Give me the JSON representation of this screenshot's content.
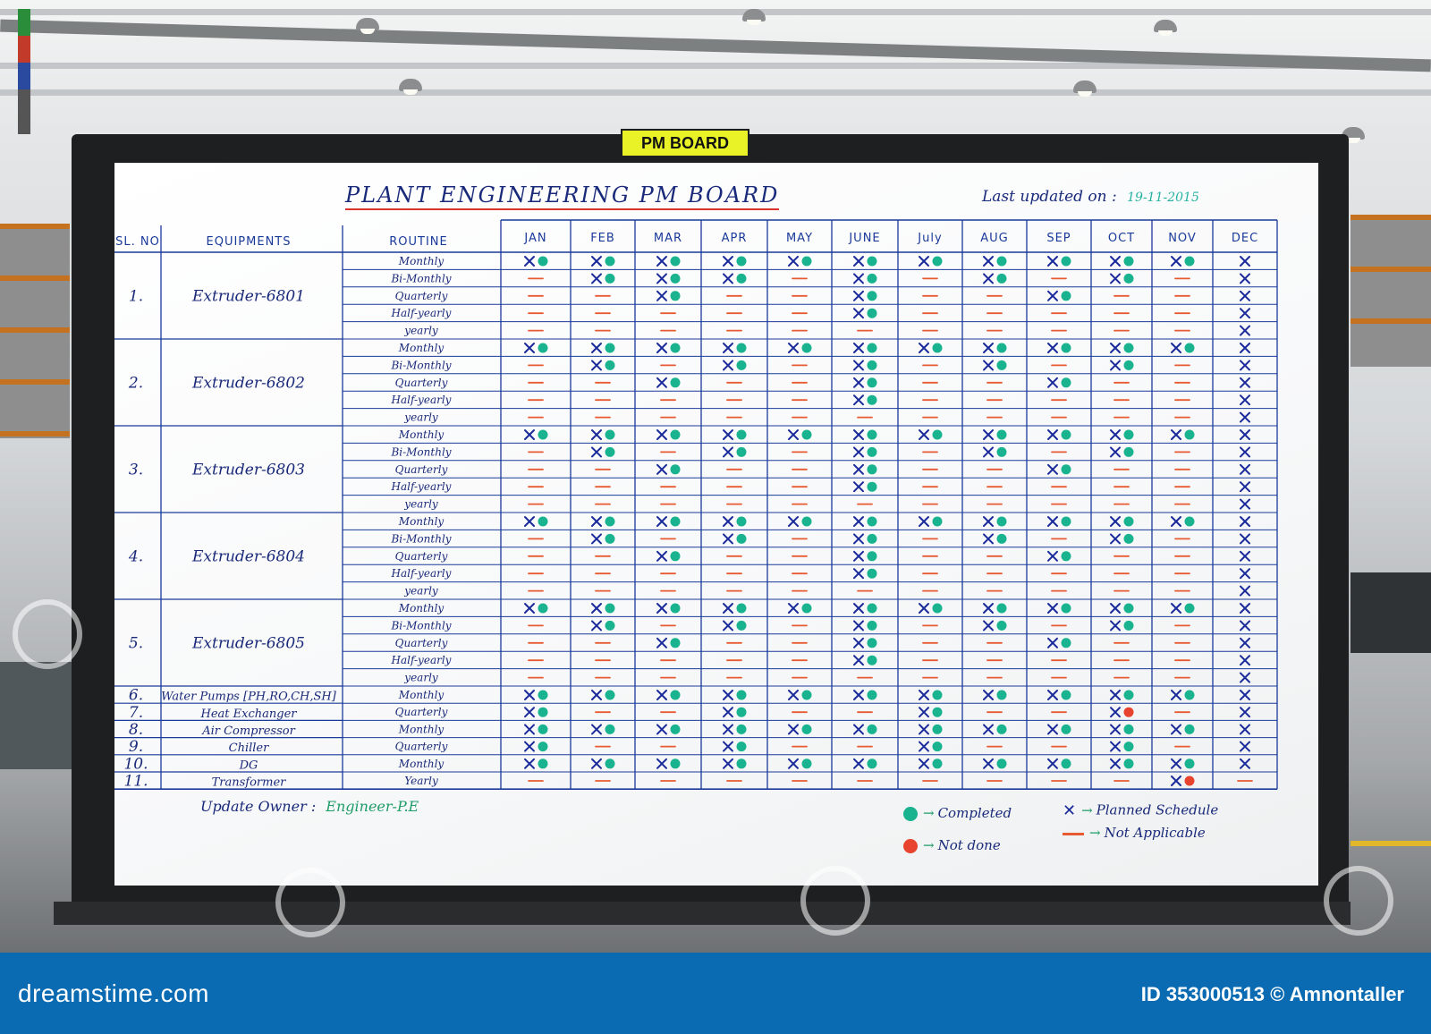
{
  "tag_label": "PM BOARD",
  "board": {
    "title": "PLANT ENGINEERING PM BOARD",
    "last_updated_label": "Last updated on :",
    "last_updated_date": "19-11-2015",
    "headers": {
      "sl": "SL. NO",
      "equipment": "EQUIPMENTS",
      "routine": "ROUTINE"
    },
    "months": [
      "JAN",
      "FEB",
      "MAR",
      "APR",
      "MAY",
      "JUNE",
      "July",
      "AUG",
      "SEP",
      "OCT",
      "NOV",
      "DEC"
    ],
    "equipment": [
      {
        "sl": "1.",
        "name": "Extruder-6801",
        "routines": [
          "Monthly",
          "Bi-Monthly",
          "Quarterly",
          "Half-yearly",
          "yearly"
        ]
      },
      {
        "sl": "2.",
        "name": "Extruder-6802",
        "routines": [
          "Monthly",
          "Bi-Monthly",
          "Quarterly",
          "Half-yearly",
          "yearly"
        ]
      },
      {
        "sl": "3.",
        "name": "Extruder-6803",
        "routines": [
          "Monthly",
          "Bi-Monthly",
          "Quarterly",
          "Half-yearly",
          "yearly"
        ]
      },
      {
        "sl": "4.",
        "name": "Extruder-6804",
        "routines": [
          "Monthly",
          "Bi-Monthly",
          "Quarterly",
          "Half-yearly",
          "yearly"
        ]
      },
      {
        "sl": "5.",
        "name": "Extruder-6805",
        "routines": [
          "Monthly",
          "Bi-Monthly",
          "Quarterly",
          "Half-yearly",
          "yearly"
        ]
      },
      {
        "sl": "6.",
        "name": "Water Pumps [PH,RO,CH,SH]",
        "routines": [
          "Monthly"
        ]
      },
      {
        "sl": "7.",
        "name": "Heat Exchanger",
        "routines": [
          "Quarterly"
        ]
      },
      {
        "sl": "8.",
        "name": "Air Compressor",
        "routines": [
          "Monthly"
        ]
      },
      {
        "sl": "9.",
        "name": "Chiller",
        "routines": [
          "Quarterly"
        ]
      },
      {
        "sl": "10.",
        "name": "DG",
        "routines": [
          "Monthly"
        ]
      },
      {
        "sl": "11.",
        "name": "Transformer",
        "routines": [
          "Yearly"
        ]
      }
    ],
    "status_grid": [
      "C C C C C C C C C C C P",
      "- C C C - C - C - C - P",
      "- - C - - C - - C - - P",
      "- - - - - C - - - - - P",
      "- - - - - - - - - - - P",
      "C C C C C C C C C C C P",
      "- C - C - C - C - C - P",
      "- - C - - C - - C - - P",
      "- - - - - C - - - - - P",
      "- - - - - - - - - - - P",
      "C C C C C C C C C C C P",
      "- C - C - C - C - C - P",
      "- - C - - C - - C - - P",
      "- - - - - C - - - - - P",
      "- - - - - - - - - - - P",
      "C C C C C C C C C C C P",
      "- C - C - C - C - C - P",
      "- - C - - C - - C - - P",
      "- - - - - C - - - - - P",
      "- - - - - - - - - - - P",
      "C C C C C C C C C C C P",
      "- C - C - C - C - C - P",
      "- - C - - C - - C - - P",
      "- - - - - C - - - - - P",
      "- - - - - - - - - - - P",
      "C C C C C C C C C C C P",
      "C - - C - - C - - N - P",
      "C C C C C C C C C C C P",
      "C - - C - - C - - C - P",
      "C C C C C C C C C C C P",
      "- - - - - - - - - - N -"
    ],
    "update_owner_label": "Update Owner :",
    "update_owner": "Engineer-P.E",
    "legend": {
      "completed": "Completed",
      "not_done": "Not done",
      "planned": "Planned Schedule",
      "not_applicable": "Not Applicable"
    },
    "colors": {
      "completed": "#19b38f",
      "not_done": "#e8432e",
      "planned": "#1a2a9a",
      "not_applicable": "#e85a32",
      "ink": "#1a3a9a"
    }
  },
  "footer": {
    "site": "dreamstime.com",
    "image_id": "ID 353000513 © Amnontaller"
  }
}
